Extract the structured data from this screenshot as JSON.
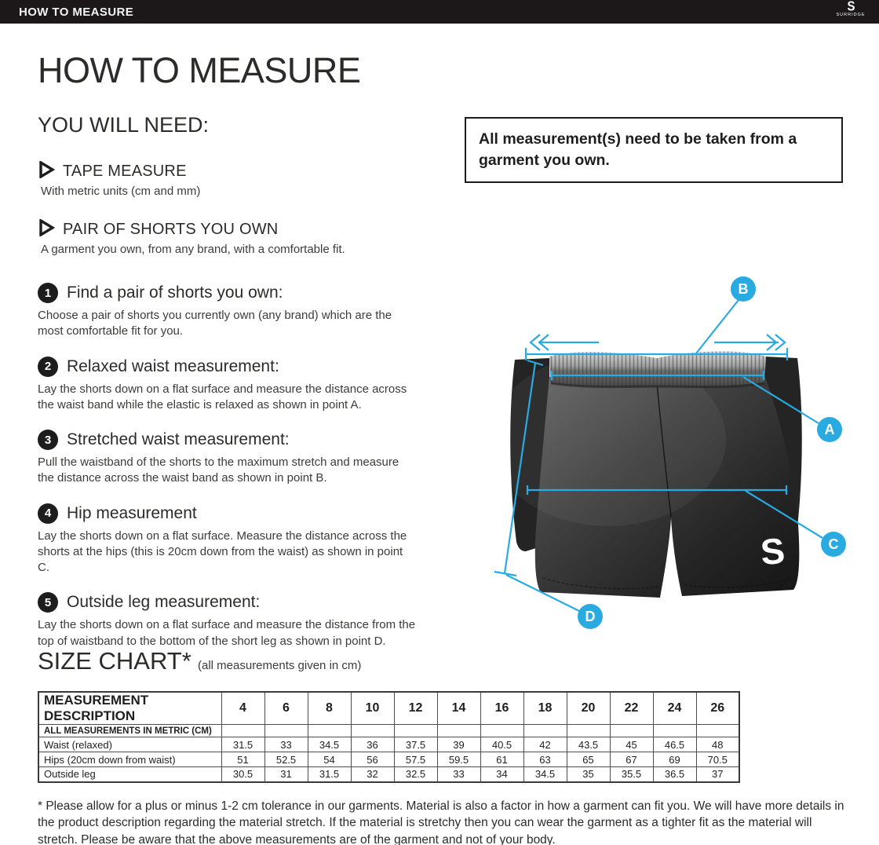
{
  "colors": {
    "accent_blue": "#29ABE2",
    "bar_black": "#1C1819",
    "text_dark": "#2C2B2A"
  },
  "topbar": {
    "title": "HOW TO MEASURE",
    "logo_letter": "S",
    "logo_word": "SURRIDGE"
  },
  "page": {
    "title": "HOW TO MEASURE"
  },
  "you_will_need": {
    "title": "YOU WILL NEED:",
    "items": [
      {
        "label": "TAPE MEASURE",
        "note": "With metric units (cm and mm)"
      },
      {
        "label": "PAIR OF SHORTS YOU OWN",
        "note": "A garment you own, from any brand, with a comfortable fit."
      }
    ]
  },
  "notice": {
    "text": "All measurement(s) need to be taken from a garment you own."
  },
  "steps": [
    {
      "num": "1",
      "heading": "Find a pair of shorts you own:",
      "body": "Choose a pair of shorts you currently own (any brand) which are the most comfortable fit for you."
    },
    {
      "num": "2",
      "heading": "Relaxed waist measurement:",
      "body": "Lay the shorts down on a flat surface and measure the distance across the waist band while the elastic is relaxed as shown in point A."
    },
    {
      "num": "3",
      "heading": "Stretched waist measurement:",
      "body": "Pull the waistband of the shorts to the maximum stretch and measure the distance across the waist band as shown in point B."
    },
    {
      "num": "4",
      "heading": "Hip measurement",
      "body": "Lay the shorts down on a flat surface. Measure the distance across the shorts at the hips (this is 20cm down from the waist)  as shown in point C."
    },
    {
      "num": "5",
      "heading": "Outside leg measurement:",
      "body": "Lay the shorts down on a flat surface and measure the distance from the top of waistband to the bottom of the short leg as shown in point D."
    }
  ],
  "diagram": {
    "points": [
      "A",
      "B",
      "C",
      "D"
    ],
    "garment_logo_letter": "S"
  },
  "size_chart": {
    "title": "SIZE CHART*",
    "subtitle": "(all measurements given in cm)",
    "table": {
      "description_header": "MEASUREMENT DESCRIPTION",
      "sizes": [
        "4",
        "6",
        "8",
        "10",
        "12",
        "14",
        "16",
        "18",
        "20",
        "22",
        "24",
        "26"
      ],
      "metric_note": "ALL MEASUREMENTS IN METRIC (CM)",
      "rows": [
        {
          "label": "Waist (relaxed)",
          "values": [
            "31.5",
            "33",
            "34.5",
            "36",
            "37.5",
            "39",
            "40.5",
            "42",
            "43.5",
            "45",
            "46.5",
            "48"
          ]
        },
        {
          "label": "Hips (20cm down from waist)",
          "values": [
            "51",
            "52.5",
            "54",
            "56",
            "57.5",
            "59.5",
            "61",
            "63",
            "65",
            "67",
            "69",
            "70.5"
          ]
        },
        {
          "label": "Outside leg",
          "values": [
            "30.5",
            "31",
            "31.5",
            "32",
            "32.5",
            "33",
            "34",
            "34.5",
            "35",
            "35.5",
            "36.5",
            "37"
          ]
        }
      ]
    }
  },
  "footnote": {
    "text": "* Please allow for a plus or minus 1-2 cm tolerance in our garments. Material is also a factor in how a garment can fit you. We will have more details in the product description regarding the material stretch.  If the material is stretchy then you can wear the garment as a tighter fit as the material will stretch.  Please be aware that the above measurements are of the garment and not of your body."
  }
}
